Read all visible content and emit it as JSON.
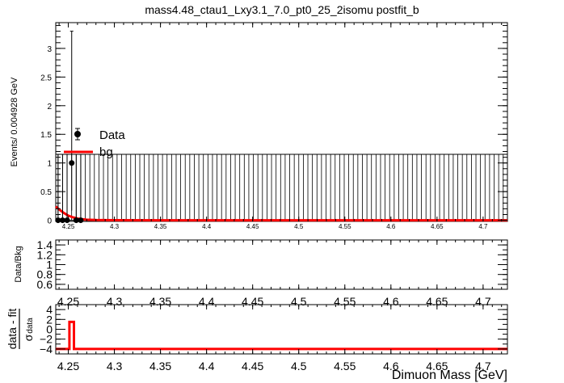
{
  "title": "mass4.48_ctau1_Lxy3.1_7.0_pt0_25_2isomu   postfit_b",
  "chart_data": [
    {
      "panel": "main",
      "type": "scatter",
      "ylabel": "Events/ 0.004928 GeV",
      "xlim": [
        4.2364,
        4.7264
      ],
      "ylim": [
        -0.02,
        3.45
      ],
      "x_ticks": [
        "4.25",
        "4.3",
        "4.35",
        "4.4",
        "4.45",
        "4.5",
        "4.55",
        "4.6",
        "4.65",
        "4.7"
      ],
      "y_ticks": [
        "0",
        "0.5",
        "1",
        "1.5",
        "2",
        "2.5",
        "3"
      ],
      "legend": {
        "position": "upper-left",
        "entries": [
          {
            "label": "Data",
            "style": "marker"
          },
          {
            "label": "bg",
            "style": "line",
            "color": "#ff0000"
          }
        ]
      },
      "series": [
        {
          "name": "Data",
          "style": "points",
          "x": [
            4.2389,
            4.2438,
            4.2487,
            4.2537,
            4.2586,
            4.2635
          ],
          "y": [
            0,
            0,
            0,
            1,
            0,
            0
          ],
          "yerr_up": [
            1.15,
            1.15,
            1.15,
            2.3,
            1.15,
            1.15
          ],
          "yerr_down": [
            0,
            0,
            0,
            0.83,
            0,
            0
          ]
        },
        {
          "name": "bg",
          "style": "curve",
          "color": "#ff0000",
          "x": [
            4.2364,
            4.24,
            4.245,
            4.25,
            4.255,
            4.26,
            4.265,
            4.27,
            4.28,
            4.3,
            4.35,
            4.4,
            4.5,
            4.6,
            4.7264
          ],
          "y": [
            0.24,
            0.19,
            0.13,
            0.08,
            0.05,
            0.03,
            0.018,
            0.01,
            0.004,
            0.001,
            0,
            0,
            0,
            0,
            0
          ]
        },
        {
          "name": "Empty-bin upper errors",
          "style": "error-band",
          "value": 0,
          "yerr_up": 1.15,
          "bin_width": 0.004928
        }
      ]
    },
    {
      "panel": "ratio",
      "type": "scatter",
      "ylabel": "Data/Bkg",
      "xlim": [
        4.2364,
        4.7264
      ],
      "ylim": [
        0.5,
        1.5
      ],
      "x_ticks": [
        "4.25",
        "4.3",
        "4.35",
        "4.4",
        "4.45",
        "4.5",
        "4.55",
        "4.6",
        "4.65",
        "4.7"
      ],
      "y_ticks": [
        "0.6",
        "0.8",
        "1",
        "1.2",
        "1.4"
      ],
      "series": []
    },
    {
      "panel": "pull",
      "type": "line",
      "ylabel_num": "data - fit",
      "ylabel_den": "σ",
      "ylabel_den_sub": "data",
      "xlabel": "Dimuon Mass [GeV]",
      "xlim": [
        4.2364,
        4.7264
      ],
      "ylim": [
        -5,
        5
      ],
      "x_ticks": [
        "4.25",
        "4.3",
        "4.35",
        "4.4",
        "4.45",
        "4.5",
        "4.55",
        "4.6",
        "4.65",
        "4.7"
      ],
      "y_ticks": [
        "−4",
        "−2",
        "0",
        "2",
        "4"
      ],
      "series": [
        {
          "name": "pull",
          "color": "#ff0000",
          "x": [
            4.2364,
            4.2512,
            4.2512,
            4.2561,
            4.2561,
            4.7264
          ],
          "y": [
            -4,
            -4,
            1.5,
            1.5,
            -4,
            -4
          ]
        }
      ]
    }
  ]
}
